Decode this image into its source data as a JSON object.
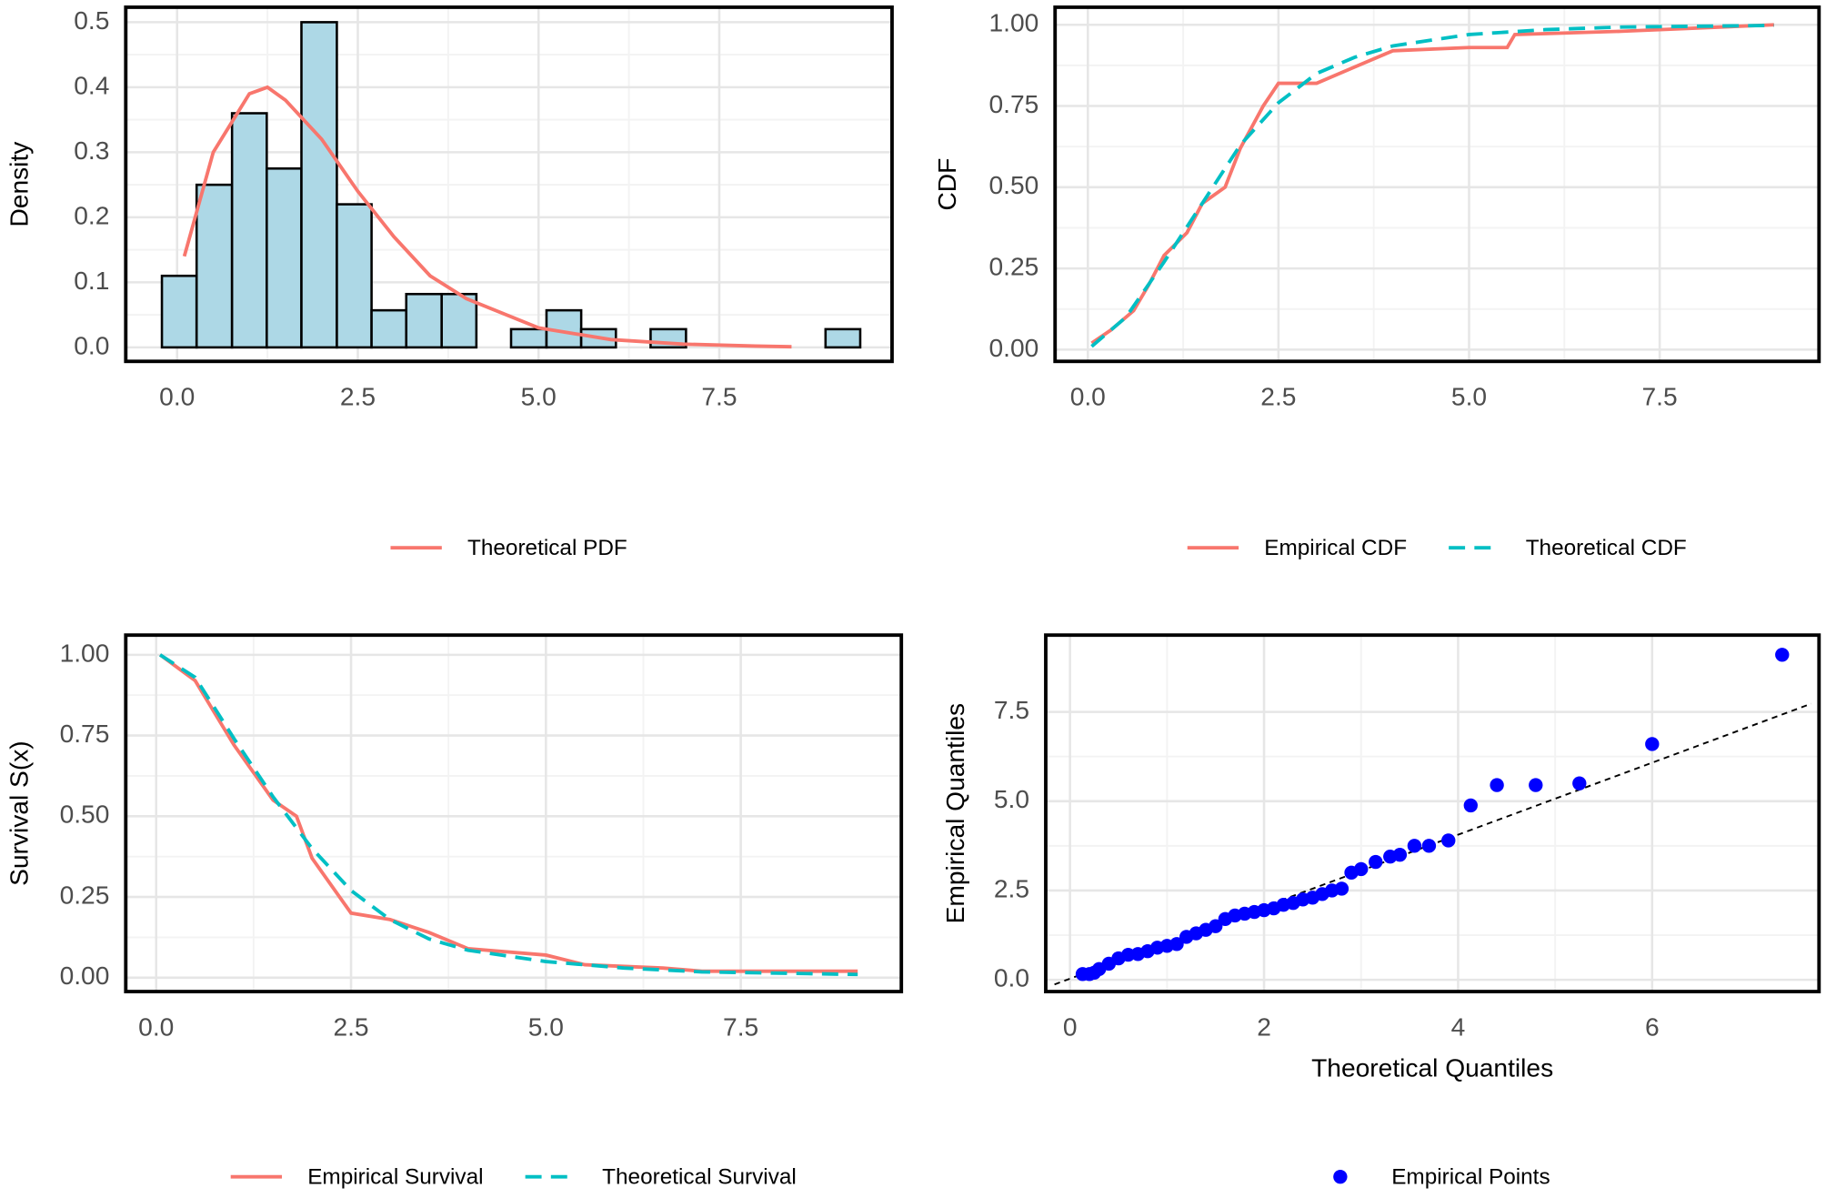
{
  "chart_data": [
    {
      "type": "histogram",
      "axis_labels": {
        "y": "Density"
      },
      "bins": [
        -0.21,
        0.27,
        0.76,
        1.24,
        1.72,
        2.21,
        2.69,
        3.17,
        3.66,
        4.14,
        4.62,
        5.11,
        5.59,
        6.07,
        6.55,
        7.04,
        7.52,
        8.0,
        8.49,
        8.97,
        9.45
      ],
      "values": [
        0.11,
        0.25,
        0.36,
        0.275,
        0.5,
        0.22,
        0.057,
        0.082,
        0.082,
        0,
        0.028,
        0.057,
        0.028,
        0,
        0.028,
        0,
        0,
        0,
        0,
        0.028
      ],
      "color": "#ADD8E6",
      "series": [
        {
          "name": "Theoretical PDF",
          "color": "#F8766D",
          "linestyle": "solid",
          "x": [
            0.1,
            0.5,
            1.0,
            1.25,
            1.5,
            2.0,
            2.5,
            3.0,
            3.5,
            4.0,
            5.0,
            6.0,
            7.0,
            8.0,
            8.5
          ],
          "values": [
            0.14,
            0.3,
            0.39,
            0.4,
            0.38,
            0.32,
            0.24,
            0.17,
            0.11,
            0.075,
            0.03,
            0.012,
            0.005,
            0.002,
            0.001
          ]
        }
      ],
      "xlim": [
        -0.71,
        9.89
      ],
      "ylim": [
        -0.0215,
        0.523
      ],
      "xticks": [
        {
          "value": 0,
          "label": "0.0"
        },
        2.5,
        {
          "value": 5,
          "label": "5.0"
        },
        7.5
      ],
      "yticks": [
        {
          "value": 0,
          "label": "0.0"
        },
        0.1,
        0.2,
        0.3,
        0.4,
        0.5
      ],
      "grid": true
    },
    {
      "type": "line",
      "axis_labels": {
        "y": "CDF"
      },
      "series": [
        {
          "name": "Empirical CDF",
          "color": "#F8766D",
          "linestyle": "solid",
          "x": [
            0.05,
            0.3,
            0.6,
            0.8,
            1.0,
            1.3,
            1.5,
            1.8,
            2.0,
            2.3,
            2.5,
            3.0,
            3.5,
            4.0,
            5.0,
            5.5,
            5.6,
            7.0,
            9.0
          ],
          "values": [
            0.02,
            0.06,
            0.12,
            0.2,
            0.29,
            0.36,
            0.45,
            0.5,
            0.62,
            0.75,
            0.82,
            0.82,
            0.87,
            0.92,
            0.93,
            0.93,
            0.97,
            0.98,
            1.0
          ]
        },
        {
          "name": "Theoretical CDF",
          "color": "#00BFC4",
          "linestyle": "dashed",
          "x": [
            0.05,
            0.5,
            1.0,
            1.5,
            2.0,
            2.5,
            3.0,
            3.5,
            4.0,
            5.0,
            6.0,
            7.0,
            9.0
          ],
          "values": [
            0.01,
            0.1,
            0.27,
            0.45,
            0.63,
            0.76,
            0.85,
            0.9,
            0.935,
            0.97,
            0.985,
            0.993,
            0.998
          ]
        }
      ],
      "xlim": [
        -0.43,
        9.59
      ],
      "ylim": [
        -0.036,
        1.054
      ],
      "xticks": [
        {
          "value": 0,
          "label": "0.0"
        },
        2.5,
        {
          "value": 5,
          "label": "5.0"
        },
        7.5
      ],
      "yticks": [
        {
          "value": 0,
          "label": "0.00"
        },
        0.25,
        {
          "value": 0.5,
          "label": "0.50"
        },
        0.75,
        {
          "value": 1,
          "label": "1.00"
        }
      ],
      "grid": true
    },
    {
      "type": "line",
      "axis_labels": {
        "y": "Survival S(x)"
      },
      "series": [
        {
          "name": "Empirical Survival",
          "color": "#F8766D",
          "linestyle": "solid",
          "x": [
            0.05,
            0.5,
            1.0,
            1.5,
            1.8,
            2.0,
            2.5,
            3.0,
            3.5,
            4.0,
            5.0,
            5.5,
            6.5,
            7.0,
            9.0
          ],
          "values": [
            1.0,
            0.92,
            0.72,
            0.55,
            0.5,
            0.37,
            0.2,
            0.18,
            0.14,
            0.09,
            0.07,
            0.04,
            0.03,
            0.02,
            0.02
          ]
        },
        {
          "name": "Theoretical Survival",
          "color": "#00BFC4",
          "linestyle": "dashed",
          "x": [
            0.05,
            0.5,
            1.0,
            1.5,
            2.0,
            2.5,
            3.0,
            3.5,
            4.0,
            5.0,
            6.0,
            7.0,
            9.0
          ],
          "values": [
            1.0,
            0.93,
            0.74,
            0.56,
            0.4,
            0.27,
            0.18,
            0.12,
            0.085,
            0.05,
            0.03,
            0.018,
            0.01
          ]
        }
      ],
      "xlim": [
        -0.39,
        9.56
      ],
      "ylim": [
        -0.043,
        1.061
      ],
      "xticks": [
        {
          "value": 0,
          "label": "0.0"
        },
        2.5,
        {
          "value": 5,
          "label": "5.0"
        },
        7.5
      ],
      "yticks": [
        {
          "value": 0,
          "label": "0.00"
        },
        0.25,
        {
          "value": 0.5,
          "label": "0.50"
        },
        0.75,
        {
          "value": 1,
          "label": "1.00"
        }
      ],
      "grid": true
    },
    {
      "type": "scatter",
      "axis_labels": {
        "x": "Theoretical Quantiles",
        "y": "Empirical Quantiles"
      },
      "series": [
        {
          "name": "Empirical Points",
          "color": "#0000FF",
          "x": [
            0.13,
            0.2,
            0.25,
            0.3,
            0.4,
            0.5,
            0.6,
            0.7,
            0.8,
            0.9,
            1.0,
            1.1,
            1.2,
            1.3,
            1.4,
            1.5,
            1.6,
            1.7,
            1.8,
            1.9,
            2.0,
            2.1,
            2.2,
            2.3,
            2.4,
            2.5,
            2.6,
            2.7,
            2.8,
            2.9,
            3.0,
            3.15,
            3.3,
            3.4,
            3.55,
            3.7,
            3.9,
            4.13,
            4.4,
            4.8,
            5.25,
            6.0,
            7.34
          ],
          "values": [
            0.16,
            0.16,
            0.2,
            0.3,
            0.45,
            0.6,
            0.7,
            0.72,
            0.8,
            0.9,
            0.95,
            1.0,
            1.2,
            1.3,
            1.4,
            1.5,
            1.7,
            1.8,
            1.85,
            1.9,
            1.95,
            2.0,
            2.1,
            2.15,
            2.25,
            2.3,
            2.4,
            2.5,
            2.55,
            3.0,
            3.1,
            3.3,
            3.45,
            3.5,
            3.75,
            3.75,
            3.9,
            4.88,
            5.45,
            5.45,
            5.5,
            6.6,
            9.1
          ]
        }
      ],
      "reference_line": {
        "color": "#000000",
        "linestyle": "dashed",
        "x": [
          -0.16,
          7.64
        ],
        "values": [
          -0.13,
          7.73
        ]
      },
      "xlim": [
        -0.25,
        7.72
      ],
      "ylim": [
        -0.33,
        9.65
      ],
      "xticks": [
        0,
        2,
        4,
        6
      ],
      "yticks": [
        {
          "value": 0,
          "label": "0.0"
        },
        2.5,
        {
          "value": 5,
          "label": "5.0"
        },
        7.5
      ],
      "grid": true
    }
  ]
}
